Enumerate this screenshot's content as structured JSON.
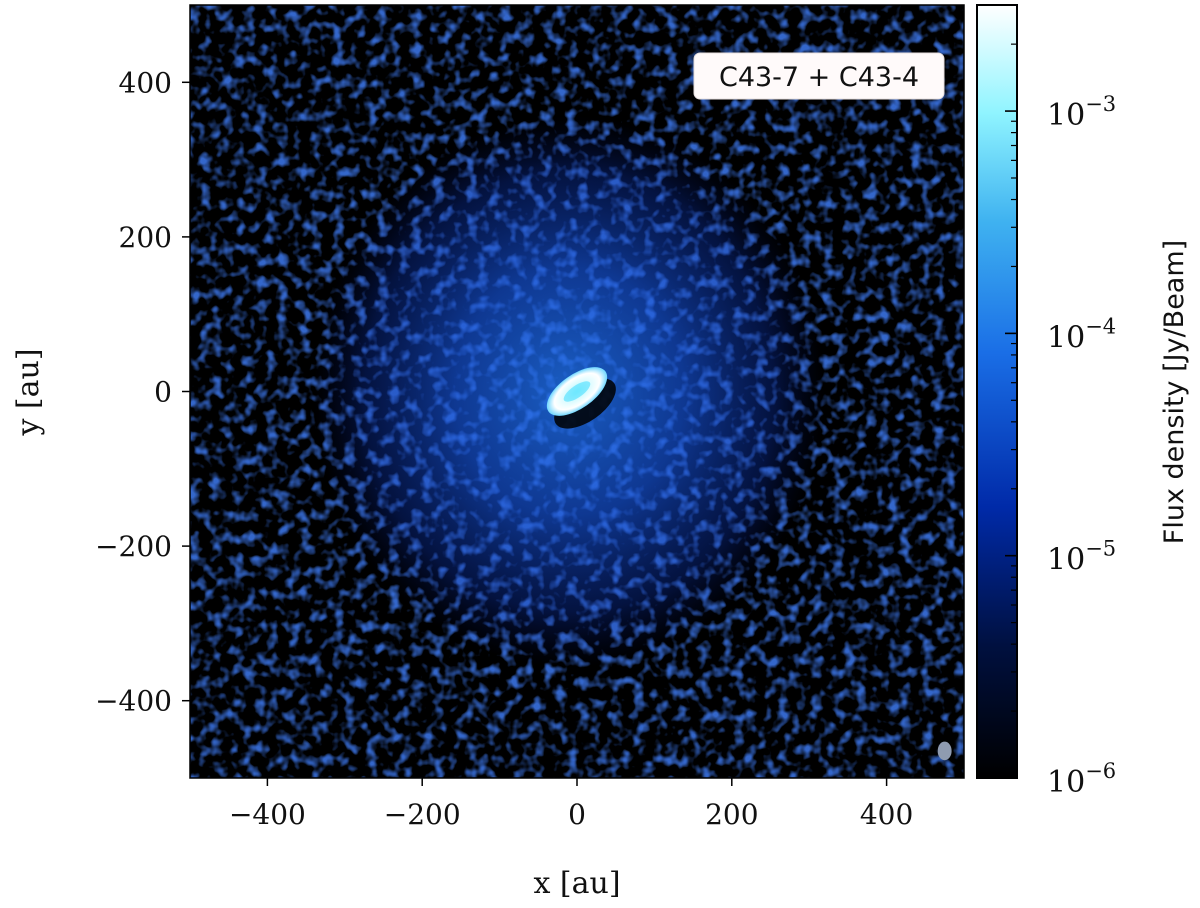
{
  "chart_data": {
    "type": "heatmap",
    "title": "",
    "xlabel": "x [au]",
    "ylabel": "y [au]",
    "xlim": [
      -500,
      500
    ],
    "ylim": [
      -500,
      500
    ],
    "xticks": [
      -400,
      -200,
      0,
      200,
      400
    ],
    "yticks": [
      -400,
      -200,
      0,
      200,
      400
    ],
    "annotation": "C43-7 + C43-4",
    "colorbar": {
      "label": "Flux density [Jy/Beam]",
      "scale": "log",
      "range": [
        1e-06,
        0.003
      ],
      "ticks": [
        {
          "value": 0.001,
          "base": "10",
          "exp": "−3"
        },
        {
          "value": 0.0001,
          "base": "10",
          "exp": "−4"
        },
        {
          "value": 1e-05,
          "base": "10",
          "exp": "−5"
        },
        {
          "value": 1e-06,
          "base": "10",
          "exp": "−6"
        }
      ],
      "colormap": [
        "#000000",
        "#001a66",
        "#0a3cc8",
        "#1f6fe6",
        "#45b4f0",
        "#8ff4ff",
        "#ffffff"
      ]
    },
    "features": {
      "inner_disk": {
        "center": [
          0,
          0
        ],
        "semi_major_au": 45,
        "semi_minor_au": 22,
        "position_angle_deg": 35,
        "peak_flux": 0.002
      },
      "envelope": {
        "center": [
          -10,
          0
        ],
        "radius_au": 330,
        "flux": 3e-05
      },
      "beam": {
        "center": [
          475,
          -465
        ],
        "semi_major_au": 9,
        "semi_minor_au": 12
      }
    }
  }
}
